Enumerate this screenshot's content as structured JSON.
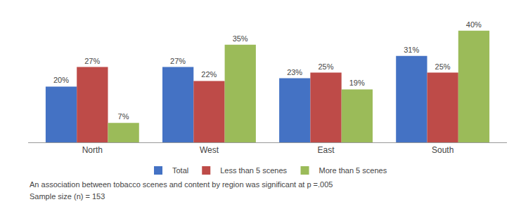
{
  "chart_data": {
    "type": "bar",
    "categories": [
      "North",
      "West",
      "East",
      "South"
    ],
    "series": [
      {
        "name": "Total",
        "color": "#4472C4",
        "values": [
          20,
          27,
          23,
          31
        ],
        "value_labels": [
          "20%",
          "27%",
          "23%",
          "31%"
        ]
      },
      {
        "name": "Less than 5 scenes",
        "color": "#BE4B48",
        "values": [
          27,
          22,
          25,
          25
        ],
        "value_labels": [
          "27%",
          "22%",
          "25%",
          "25%"
        ]
      },
      {
        "name": "More than 5 scenes",
        "color": "#9BBB59",
        "values": [
          7,
          35,
          19,
          40
        ],
        "value_labels": [
          "7%",
          "35%",
          "19%",
          "40%"
        ]
      }
    ],
    "ylim": [
      0,
      46
    ],
    "data_labels": true,
    "tick_labels": "x",
    "grid": false,
    "legend": "bottom",
    "annotations": [
      "An association between tobacco scenes and content by region was significant at p =.005",
      "Sample size (n) = 153"
    ]
  }
}
